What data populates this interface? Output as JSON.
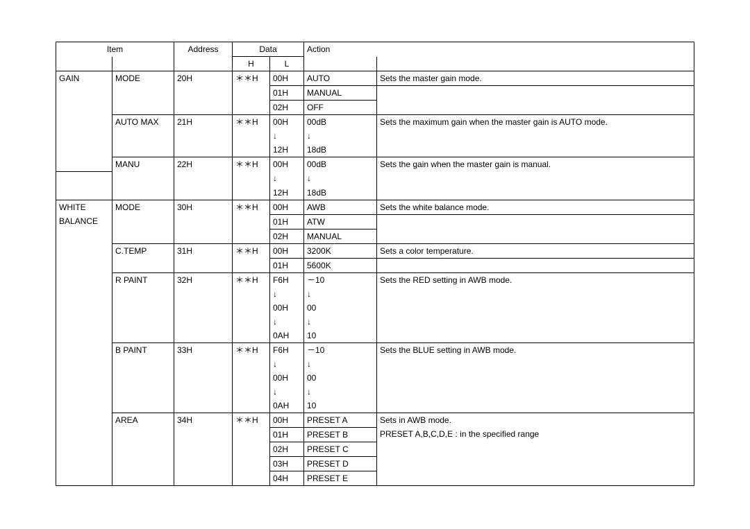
{
  "header": {
    "item": "Item",
    "address": "Address",
    "data": "Data",
    "data_h": "H",
    "data_l": "L",
    "action": "Action"
  },
  "rows": [
    {
      "i1": "GAIN",
      "i2": "MODE",
      "addr": "20H",
      "dh": "＊＊H",
      "dl": "00H",
      "a1": "AUTO",
      "a2": "Sets the master gain mode.",
      "b": {
        "i1": "nb",
        "i2": "nb",
        "addr": "nb",
        "dh": "nb"
      }
    },
    {
      "dl": "01H",
      "a1": "MANUAL",
      "b": {
        "i1": "ntb",
        "i2": "ntb",
        "addr": "ntb",
        "dh": "ntb",
        "a2": "ntb"
      }
    },
    {
      "dl": "02H",
      "a1": "OFF",
      "b": {
        "i1": "ntb",
        "i2": "nt",
        "addr": "nt",
        "dh": "nt",
        "a2": "nt"
      }
    },
    {
      "i2": "AUTO MAX",
      "addr": "21H",
      "dh": "＊＊H",
      "dl": "00H",
      "a1": "00dB",
      "a2": "Sets the maximum gain when the master gain is AUTO mode.",
      "b": {
        "i1": "ntb",
        "i2": "nb",
        "addr": "nb",
        "dh": "nb",
        "dl": "nb",
        "a1": "nb",
        "a2": "nb"
      }
    },
    {
      "dl": "↓",
      "a1": "↓",
      "b": {
        "i1": "ntb",
        "i2": "ntb",
        "addr": "ntb",
        "dh": "ntb",
        "dl": "ntb",
        "a1": "ntb",
        "a2": "ntb"
      }
    },
    {
      "dl": "12H",
      "a1": "18dB",
      "b": {
        "i1": "ntb",
        "i2": "nt",
        "addr": "nt",
        "dh": "nt",
        "dl": "nt",
        "a1": "nt",
        "a2": "nt"
      }
    },
    {
      "i2": "MANU",
      "addr": "22H",
      "dh": "＊＊H",
      "dl": "00H",
      "a1": "00dB",
      "a2": "Sets the gain when the master gain is manual.",
      "b": {
        "i1": "nt",
        "i2": "nb",
        "addr": "nb",
        "dh": "nb",
        "dl": "nb",
        "a1": "nb",
        "a2": "nb"
      }
    },
    {
      "dl": "↓",
      "a1": "↓",
      "b": {
        "i1": "ntb",
        "i2": "ntb",
        "addr": "ntb",
        "dh": "ntb",
        "dl": "ntb",
        "a1": "ntb",
        "a2": "ntb"
      }
    },
    {
      "dl": "12H",
      "a1": "18dB",
      "b": {
        "i1": "nt",
        "i2": "nt",
        "addr": "nt",
        "dh": "nt",
        "dl": "nt",
        "a1": "nt",
        "a2": "nt"
      }
    },
    {
      "i1": "WHITE",
      "i2": "MODE",
      "addr": "30H",
      "dh": "＊＊H",
      "dl": "00H",
      "a1": "AWB",
      "a2": "Sets the white balance mode.",
      "b": {
        "i1": "nb",
        "i2": "nb",
        "addr": "nb",
        "dh": "nb"
      }
    },
    {
      "i1": "BALANCE",
      "dl": "01H",
      "a1": "ATW",
      "b": {
        "i1": "ntb",
        "i2": "ntb",
        "addr": "ntb",
        "dh": "ntb",
        "a2": "ntb"
      }
    },
    {
      "dl": "02H",
      "a1": "MANUAL",
      "b": {
        "i1": "ntb",
        "i2": "nt",
        "addr": "nt",
        "dh": "nt",
        "a2": "nt"
      }
    },
    {
      "i2": "C.TEMP",
      "addr": "31H",
      "dh": "＊＊H",
      "dl": "00H",
      "a1": "3200K",
      "a2": "Sets a color temperature.",
      "b": {
        "i1": "ntb",
        "i2": "nb",
        "addr": "nb",
        "dh": "nb"
      }
    },
    {
      "dl": "01H",
      "a1": "5600K",
      "b": {
        "i1": "ntb",
        "i2": "nt",
        "addr": "nt",
        "dh": "nt",
        "a2": "nt"
      }
    },
    {
      "i2": "R PAINT",
      "addr": "32H",
      "dh": "＊＊H",
      "dl": "F6H",
      "a1": "－10",
      "a2": "Sets the RED setting in AWB mode.",
      "b": {
        "i1": "ntb",
        "i2": "nb",
        "addr": "nb",
        "dh": "nb",
        "dl": "nb",
        "a1": "nb",
        "a2": "nb"
      }
    },
    {
      "dl": "↓",
      "a1": "↓",
      "b": {
        "i1": "ntb",
        "i2": "ntb",
        "addr": "ntb",
        "dh": "ntb",
        "dl": "ntb",
        "a1": "ntb",
        "a2": "ntb"
      }
    },
    {
      "dl": "00H",
      "a1": "00",
      "b": {
        "i1": "ntb",
        "i2": "ntb",
        "addr": "ntb",
        "dh": "ntb",
        "dl": "ntb",
        "a1": "ntb",
        "a2": "ntb"
      }
    },
    {
      "dl": "↓",
      "a1": "↓",
      "b": {
        "i1": "ntb",
        "i2": "ntb",
        "addr": "ntb",
        "dh": "ntb",
        "dl": "ntb",
        "a1": "ntb",
        "a2": "ntb"
      }
    },
    {
      "dl": "0AH",
      "a1": "10",
      "b": {
        "i1": "ntb",
        "i2": "nt",
        "addr": "nt",
        "dh": "nt",
        "dl": "nt",
        "a1": "nt",
        "a2": "nt"
      }
    },
    {
      "i2": "B PAINT",
      "addr": "33H",
      "dh": "＊＊H",
      "dl": "F6H",
      "a1": "－10",
      "a2": "Sets the BLUE setting in AWB mode.",
      "b": {
        "i1": "ntb",
        "i2": "nb",
        "addr": "nb",
        "dh": "nb",
        "dl": "nb",
        "a1": "nb",
        "a2": "nb"
      }
    },
    {
      "dl": "↓",
      "a1": "↓",
      "b": {
        "i1": "ntb",
        "i2": "ntb",
        "addr": "ntb",
        "dh": "ntb",
        "dl": "ntb",
        "a1": "ntb",
        "a2": "ntb"
      }
    },
    {
      "dl": "00H",
      "a1": "00",
      "b": {
        "i1": "ntb",
        "i2": "ntb",
        "addr": "ntb",
        "dh": "ntb",
        "dl": "ntb",
        "a1": "ntb",
        "a2": "ntb"
      }
    },
    {
      "dl": "↓",
      "a1": "↓",
      "b": {
        "i1": "ntb",
        "i2": "ntb",
        "addr": "ntb",
        "dh": "ntb",
        "dl": "ntb",
        "a1": "ntb",
        "a2": "ntb"
      }
    },
    {
      "dl": "0AH",
      "a1": "10",
      "b": {
        "i1": "ntb",
        "i2": "nt",
        "addr": "nt",
        "dh": "nt",
        "dl": "nt",
        "a1": "nt",
        "a2": "nt"
      }
    },
    {
      "i2": "AREA",
      "addr": "34H",
      "dh": "＊＊H",
      "dl": "00H",
      "a1": "PRESET A",
      "a2": "Sets in AWB mode.",
      "b": {
        "i1": "ntb",
        "i2": "nb",
        "addr": "nb",
        "dh": "nb",
        "a2": "nb"
      }
    },
    {
      "dl": "01H",
      "a1": "PRESET B",
      "a2": "PRESET A,B,C,D,E : in the specified range",
      "b": {
        "i1": "ntb",
        "i2": "ntb",
        "addr": "ntb",
        "dh": "ntb",
        "a2": "ntb"
      }
    },
    {
      "dl": "02H",
      "a1": "PRESET C",
      "b": {
        "i1": "ntb",
        "i2": "ntb",
        "addr": "ntb",
        "dh": "ntb",
        "a2": "ntb"
      }
    },
    {
      "dl": "03H",
      "a1": "PRESET D",
      "b": {
        "i1": "ntb",
        "i2": "ntb",
        "addr": "ntb",
        "dh": "ntb",
        "a2": "ntb"
      }
    },
    {
      "dl": "04H",
      "a1": "PRESET E",
      "b": {
        "i1": "nt",
        "i2": "nt",
        "addr": "nt",
        "dh": "nt",
        "a2": "nt"
      }
    }
  ]
}
